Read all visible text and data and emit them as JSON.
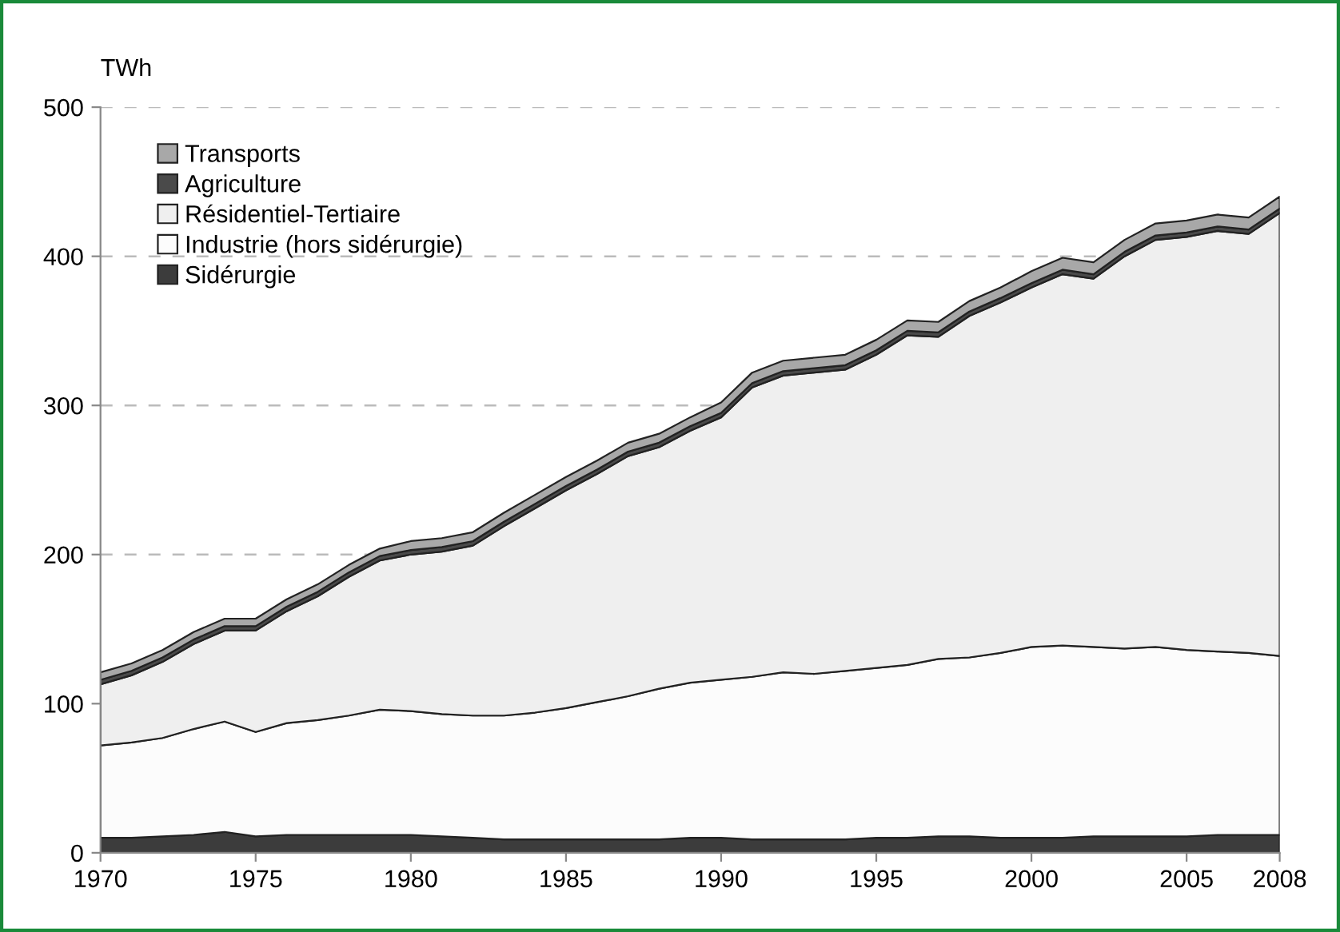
{
  "chart_data": {
    "type": "area",
    "stacked": true,
    "ylabel": "TWh",
    "x": [
      1970,
      1971,
      1972,
      1973,
      1974,
      1975,
      1976,
      1977,
      1978,
      1979,
      1980,
      1981,
      1982,
      1983,
      1984,
      1985,
      1986,
      1987,
      1988,
      1989,
      1990,
      1991,
      1992,
      1993,
      1994,
      1995,
      1996,
      1997,
      1998,
      1999,
      2000,
      2001,
      2002,
      2003,
      2004,
      2005,
      2006,
      2007,
      2008
    ],
    "series": [
      {
        "name": "Sidérurgie",
        "color": "#3c3c3c",
        "values": [
          10,
          10,
          11,
          12,
          14,
          11,
          12,
          12,
          12,
          12,
          12,
          11,
          10,
          9,
          9,
          9,
          9,
          9,
          9,
          10,
          10,
          9,
          9,
          9,
          9,
          10,
          10,
          11,
          11,
          10,
          10,
          10,
          11,
          11,
          11,
          11,
          12,
          12,
          12
        ]
      },
      {
        "name": "Industrie (hors sidérurgie)",
        "color": "#fcfcfc",
        "values": [
          62,
          64,
          66,
          71,
          74,
          70,
          75,
          77,
          80,
          84,
          83,
          82,
          82,
          83,
          85,
          88,
          92,
          96,
          101,
          104,
          106,
          109,
          112,
          111,
          113,
          114,
          116,
          119,
          120,
          124,
          128,
          129,
          127,
          126,
          127,
          125,
          123,
          122,
          120
        ]
      },
      {
        "name": "Résidentiel-Tertiaire",
        "color": "#efefef",
        "values": [
          41,
          45,
          51,
          57,
          61,
          68,
          75,
          83,
          93,
          100,
          105,
          109,
          114,
          127,
          137,
          146,
          153,
          161,
          162,
          169,
          176,
          194,
          199,
          202,
          202,
          210,
          221,
          216,
          229,
          235,
          241,
          249,
          247,
          263,
          273,
          277,
          282,
          281,
          297
        ]
      },
      {
        "name": "Agriculture",
        "color": "#4a4a4a",
        "values": [
          3,
          3,
          3,
          3,
          3,
          3,
          3,
          3,
          3,
          3,
          3,
          3,
          3,
          3,
          3,
          3,
          3,
          3,
          3,
          3,
          3,
          3,
          3,
          3,
          3,
          3,
          3,
          3,
          3,
          3,
          3,
          3,
          3,
          3,
          3,
          3,
          3,
          3,
          3
        ]
      },
      {
        "name": "Transports",
        "color": "#a8a8a8",
        "values": [
          5,
          5,
          5,
          5,
          5,
          5,
          5,
          5,
          5,
          5,
          6,
          6,
          6,
          6,
          6,
          6,
          6,
          6,
          6,
          6,
          7,
          7,
          7,
          7,
          7,
          7,
          7,
          7,
          7,
          7,
          8,
          8,
          8,
          8,
          8,
          8,
          8,
          8,
          8
        ]
      }
    ],
    "xlim": [
      1970,
      2008
    ],
    "xticks": [
      1970,
      1975,
      1980,
      1985,
      1990,
      1995,
      2000,
      2005,
      2008
    ],
    "ylim": [
      0,
      500
    ],
    "yticks": [
      0,
      100,
      200,
      300,
      400,
      500
    ],
    "grid": "y",
    "line_style": "dashed",
    "legend": "top left"
  }
}
